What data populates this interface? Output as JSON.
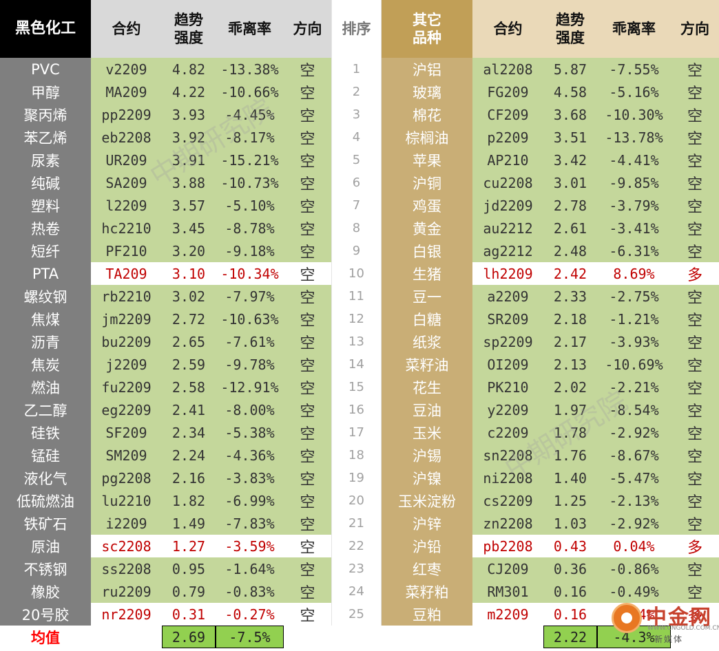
{
  "headers": {
    "left_title": "黑色化工",
    "code": "合约",
    "strength_line1": "趋势",
    "strength_line2": "强度",
    "deviation": "乖离率",
    "direction": "方向",
    "rank": "排序",
    "right_title_line1": "其它",
    "right_title_line2": "品种"
  },
  "rows": [
    {
      "rank": "1",
      "left": {
        "name": "PVC",
        "code": "v2209",
        "strength": "4.82",
        "deviation": "-13.38%",
        "dir": "空"
      },
      "right": {
        "name": "沪铝",
        "code": "al2208",
        "strength": "5.87",
        "deviation": "-7.55%",
        "dir": "空"
      }
    },
    {
      "rank": "2",
      "left": {
        "name": "甲醇",
        "code": "MA209",
        "strength": "4.22",
        "deviation": "-10.66%",
        "dir": "空"
      },
      "right": {
        "name": "玻璃",
        "code": "FG209",
        "strength": "4.58",
        "deviation": "-5.16%",
        "dir": "空"
      }
    },
    {
      "rank": "3",
      "left": {
        "name": "聚丙烯",
        "code": "pp2209",
        "strength": "3.93",
        "deviation": "-4.45%",
        "dir": "空"
      },
      "right": {
        "name": "棉花",
        "code": "CF209",
        "strength": "3.68",
        "deviation": "-10.30%",
        "dir": "空"
      }
    },
    {
      "rank": "4",
      "left": {
        "name": "苯乙烯",
        "code": "eb2208",
        "strength": "3.92",
        "deviation": "-8.17%",
        "dir": "空"
      },
      "right": {
        "name": "棕榈油",
        "code": "p2209",
        "strength": "3.51",
        "deviation": "-13.78%",
        "dir": "空"
      }
    },
    {
      "rank": "5",
      "left": {
        "name": "尿素",
        "code": "UR209",
        "strength": "3.91",
        "deviation": "-15.21%",
        "dir": "空"
      },
      "right": {
        "name": "苹果",
        "code": "AP210",
        "strength": "3.42",
        "deviation": "-4.41%",
        "dir": "空"
      }
    },
    {
      "rank": "6",
      "left": {
        "name": "纯碱",
        "code": "SA209",
        "strength": "3.88",
        "deviation": "-10.73%",
        "dir": "空"
      },
      "right": {
        "name": "沪铜",
        "code": "cu2208",
        "strength": "3.01",
        "deviation": "-9.85%",
        "dir": "空"
      }
    },
    {
      "rank": "7",
      "left": {
        "name": "塑料",
        "code": "l2209",
        "strength": "3.57",
        "deviation": "-5.10%",
        "dir": "空"
      },
      "right": {
        "name": "鸡蛋",
        "code": "jd2209",
        "strength": "2.78",
        "deviation": "-3.79%",
        "dir": "空"
      }
    },
    {
      "rank": "8",
      "left": {
        "name": "热卷",
        "code": "hc2210",
        "strength": "3.45",
        "deviation": "-8.78%",
        "dir": "空"
      },
      "right": {
        "name": "黄金",
        "code": "au2212",
        "strength": "2.61",
        "deviation": "-3.41%",
        "dir": "空"
      }
    },
    {
      "rank": "9",
      "left": {
        "name": "短纤",
        "code": "PF210",
        "strength": "3.20",
        "deviation": "-9.18%",
        "dir": "空"
      },
      "right": {
        "name": "白银",
        "code": "ag2212",
        "strength": "2.48",
        "deviation": "-6.31%",
        "dir": "空"
      }
    },
    {
      "rank": "10",
      "left": {
        "name": "PTA",
        "code": "TA209",
        "strength": "3.10",
        "deviation": "-10.34%",
        "dir": "空"
      },
      "right": {
        "name": "生猪",
        "code": "lh2209",
        "strength": "2.42",
        "deviation": "8.69%",
        "dir": "多"
      }
    },
    {
      "rank": "11",
      "left": {
        "name": "螺纹钢",
        "code": "rb2210",
        "strength": "3.02",
        "deviation": "-7.97%",
        "dir": "空"
      },
      "right": {
        "name": "豆一",
        "code": "a2209",
        "strength": "2.33",
        "deviation": "-2.75%",
        "dir": "空"
      }
    },
    {
      "rank": "12",
      "left": {
        "name": "焦煤",
        "code": "jm2209",
        "strength": "2.72",
        "deviation": "-10.63%",
        "dir": "空"
      },
      "right": {
        "name": "白糖",
        "code": "SR209",
        "strength": "2.18",
        "deviation": "-1.21%",
        "dir": "空"
      }
    },
    {
      "rank": "13",
      "left": {
        "name": "沥青",
        "code": "bu2209",
        "strength": "2.65",
        "deviation": "-7.61%",
        "dir": "空"
      },
      "right": {
        "name": "纸浆",
        "code": "sp2209",
        "strength": "2.17",
        "deviation": "-3.93%",
        "dir": "空"
      }
    },
    {
      "rank": "14",
      "left": {
        "name": "焦炭",
        "code": "j2209",
        "strength": "2.59",
        "deviation": "-9.78%",
        "dir": "空"
      },
      "right": {
        "name": "菜籽油",
        "code": "OI209",
        "strength": "2.13",
        "deviation": "-10.69%",
        "dir": "空"
      }
    },
    {
      "rank": "15",
      "left": {
        "name": "燃油",
        "code": "fu2209",
        "strength": "2.58",
        "deviation": "-12.91%",
        "dir": "空"
      },
      "right": {
        "name": "花生",
        "code": "PK210",
        "strength": "2.02",
        "deviation": "-2.21%",
        "dir": "空"
      }
    },
    {
      "rank": "16",
      "left": {
        "name": "乙二醇",
        "code": "eg2209",
        "strength": "2.41",
        "deviation": "-8.00%",
        "dir": "空"
      },
      "right": {
        "name": "豆油",
        "code": "y2209",
        "strength": "1.97",
        "deviation": "-8.54%",
        "dir": "空"
      }
    },
    {
      "rank": "17",
      "left": {
        "name": "硅铁",
        "code": "SF209",
        "strength": "2.34",
        "deviation": "-5.38%",
        "dir": "空"
      },
      "right": {
        "name": "玉米",
        "code": "c2209",
        "strength": "1.78",
        "deviation": "-2.92%",
        "dir": "空"
      }
    },
    {
      "rank": "18",
      "left": {
        "name": "锰硅",
        "code": "SM209",
        "strength": "2.24",
        "deviation": "-4.36%",
        "dir": "空"
      },
      "right": {
        "name": "沪锡",
        "code": "sn2208",
        "strength": "1.76",
        "deviation": "-8.67%",
        "dir": "空"
      }
    },
    {
      "rank": "19",
      "left": {
        "name": "液化气",
        "code": "pg2208",
        "strength": "2.16",
        "deviation": "-3.83%",
        "dir": "空"
      },
      "right": {
        "name": "沪镍",
        "code": "ni2208",
        "strength": "1.40",
        "deviation": "-5.47%",
        "dir": "空"
      }
    },
    {
      "rank": "20",
      "left": {
        "name": "低硫燃油",
        "code": "lu2210",
        "strength": "1.82",
        "deviation": "-6.99%",
        "dir": "空"
      },
      "right": {
        "name": "玉米淀粉",
        "code": "cs2209",
        "strength": "1.25",
        "deviation": "-2.13%",
        "dir": "空"
      }
    },
    {
      "rank": "21",
      "left": {
        "name": "铁矿石",
        "code": "i2209",
        "strength": "1.49",
        "deviation": "-7.83%",
        "dir": "空"
      },
      "right": {
        "name": "沪锌",
        "code": "zn2208",
        "strength": "1.03",
        "deviation": "-2.92%",
        "dir": "空"
      }
    },
    {
      "rank": "22",
      "left": {
        "name": "原油",
        "code": "sc2208",
        "strength": "1.27",
        "deviation": "-3.59%",
        "dir": "空"
      },
      "right": {
        "name": "沪铅",
        "code": "pb2208",
        "strength": "0.43",
        "deviation": "0.04%",
        "dir": "多"
      }
    },
    {
      "rank": "23",
      "left": {
        "name": "不锈钢",
        "code": "ss2208",
        "strength": "0.95",
        "deviation": "-1.64%",
        "dir": "空"
      },
      "right": {
        "name": "红枣",
        "code": "CJ209",
        "strength": "0.36",
        "deviation": "-0.86%",
        "dir": "空"
      }
    },
    {
      "rank": "24",
      "left": {
        "name": "橡胶",
        "code": "ru2209",
        "strength": "0.79",
        "deviation": "-0.83%",
        "dir": "空"
      },
      "right": {
        "name": "菜籽粕",
        "code": "RM301",
        "strength": "0.16",
        "deviation": "-0.49%",
        "dir": "空"
      }
    },
    {
      "rank": "25",
      "left": {
        "name": "20号胶",
        "code": "nr2209",
        "strength": "0.31",
        "deviation": "-0.27%",
        "dir": "空"
      },
      "right": {
        "name": "豆粕",
        "code": "m2209",
        "strength": "0.16",
        "deviation": "0.44%",
        "dir": "多"
      }
    }
  ],
  "averages": {
    "label": "均值",
    "left_strength": "2.69",
    "left_deviation": "-7.5%",
    "right_strength": "2.22",
    "right_deviation": "-4.3%"
  },
  "watermark": "中期研究院",
  "logo": {
    "name": "中金网",
    "url": "WWW.CNGOLD.COM.CN",
    "subtitle": "新媒体"
  },
  "colors": {
    "left_name_bg": "#7f7f7f",
    "data_green": "#c4d79b",
    "right_name_bg": "#c9ae76",
    "header_gold": "#c19f57",
    "header_beige": "#ead9b8",
    "long_red": "#c00000",
    "avg_green": "#92d050"
  }
}
